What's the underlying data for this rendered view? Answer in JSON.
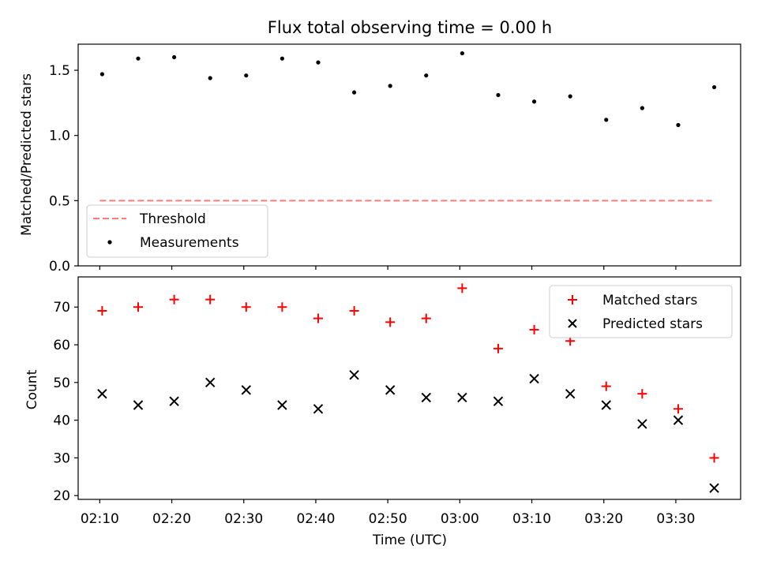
{
  "chart_data": [
    {
      "type": "scatter",
      "title": "Flux total observing time = 0.00 h",
      "xlabel": "",
      "ylabel": "Matched/Predicted stars",
      "ylim": [
        0,
        1.7
      ],
      "yticks": [
        0.0,
        0.5,
        1.0,
        1.5
      ],
      "ytick_labels": [
        "0.0",
        "0.5",
        "1.0",
        "1.5"
      ],
      "grid": false,
      "legend_position": "lower-left",
      "series": [
        {
          "name": "Threshold",
          "kind": "line",
          "style": "dashed",
          "color": "#ff7b7b",
          "points": [
            {
              "x": "02:10:00",
              "y": 0.5
            },
            {
              "x": "03:35:00",
              "y": 0.5
            }
          ]
        },
        {
          "name": "Measurements",
          "kind": "scatter",
          "marker": "dot",
          "color": "#000000",
          "points": [
            {
              "x": "02:10:20",
              "y": 1.47
            },
            {
              "x": "02:15:20",
              "y": 1.59
            },
            {
              "x": "02:20:20",
              "y": 1.6
            },
            {
              "x": "02:25:20",
              "y": 1.44
            },
            {
              "x": "02:30:20",
              "y": 1.46
            },
            {
              "x": "02:35:20",
              "y": 1.59
            },
            {
              "x": "02:40:20",
              "y": 1.56
            },
            {
              "x": "02:45:20",
              "y": 1.33
            },
            {
              "x": "02:50:20",
              "y": 1.38
            },
            {
              "x": "02:55:20",
              "y": 1.46
            },
            {
              "x": "03:00:20",
              "y": 1.63
            },
            {
              "x": "03:05:20",
              "y": 1.31
            },
            {
              "x": "03:10:20",
              "y": 1.26
            },
            {
              "x": "03:15:20",
              "y": 1.3
            },
            {
              "x": "03:20:20",
              "y": 1.12
            },
            {
              "x": "03:25:20",
              "y": 1.21
            },
            {
              "x": "03:30:20",
              "y": 1.08
            },
            {
              "x": "03:35:20",
              "y": 1.37
            }
          ]
        }
      ]
    },
    {
      "type": "scatter",
      "title": "",
      "xlabel": "Time (UTC)",
      "ylabel": "Count",
      "ylim": [
        19,
        78
      ],
      "yticks": [
        20,
        30,
        40,
        50,
        60,
        70
      ],
      "ytick_labels": [
        "20",
        "30",
        "40",
        "50",
        "60",
        "70"
      ],
      "xlim": [
        "02:07:00",
        "03:39:00"
      ],
      "xticks": [
        "02:10:00",
        "02:20:00",
        "02:30:00",
        "02:40:00",
        "02:50:00",
        "03:00:00",
        "03:10:00",
        "03:20:00",
        "03:30:00"
      ],
      "xtick_labels": [
        "02:10",
        "02:20",
        "02:30",
        "02:40",
        "02:50",
        "03:00",
        "03:10",
        "03:20",
        "03:30"
      ],
      "grid": false,
      "legend_position": "top-right",
      "series": [
        {
          "name": "Matched stars",
          "kind": "scatter",
          "marker": "plus",
          "color": "#ff0000",
          "points": [
            {
              "x": "02:10:20",
              "y": 69
            },
            {
              "x": "02:15:20",
              "y": 70
            },
            {
              "x": "02:20:20",
              "y": 72
            },
            {
              "x": "02:25:20",
              "y": 72
            },
            {
              "x": "02:30:20",
              "y": 70
            },
            {
              "x": "02:35:20",
              "y": 70
            },
            {
              "x": "02:40:20",
              "y": 67
            },
            {
              "x": "02:45:20",
              "y": 69
            },
            {
              "x": "02:50:20",
              "y": 66
            },
            {
              "x": "02:55:20",
              "y": 67
            },
            {
              "x": "03:00:20",
              "y": 75
            },
            {
              "x": "03:05:20",
              "y": 59
            },
            {
              "x": "03:10:20",
              "y": 64
            },
            {
              "x": "03:15:20",
              "y": 61
            },
            {
              "x": "03:20:20",
              "y": 49
            },
            {
              "x": "03:25:20",
              "y": 47
            },
            {
              "x": "03:30:20",
              "y": 43
            },
            {
              "x": "03:35:20",
              "y": 30
            }
          ]
        },
        {
          "name": "Predicted stars",
          "kind": "scatter",
          "marker": "x",
          "color": "#000000",
          "points": [
            {
              "x": "02:10:20",
              "y": 47
            },
            {
              "x": "02:15:20",
              "y": 44
            },
            {
              "x": "02:20:20",
              "y": 45
            },
            {
              "x": "02:25:20",
              "y": 50
            },
            {
              "x": "02:30:20",
              "y": 48
            },
            {
              "x": "02:35:20",
              "y": 44
            },
            {
              "x": "02:40:20",
              "y": 43
            },
            {
              "x": "02:45:20",
              "y": 52
            },
            {
              "x": "02:50:20",
              "y": 48
            },
            {
              "x": "02:55:20",
              "y": 46
            },
            {
              "x": "03:00:20",
              "y": 46
            },
            {
              "x": "03:05:20",
              "y": 45
            },
            {
              "x": "03:10:20",
              "y": 51
            },
            {
              "x": "03:15:20",
              "y": 47
            },
            {
              "x": "03:20:20",
              "y": 44
            },
            {
              "x": "03:25:20",
              "y": 39
            },
            {
              "x": "03:30:20",
              "y": 40
            },
            {
              "x": "03:35:20",
              "y": 22
            }
          ]
        }
      ]
    }
  ]
}
